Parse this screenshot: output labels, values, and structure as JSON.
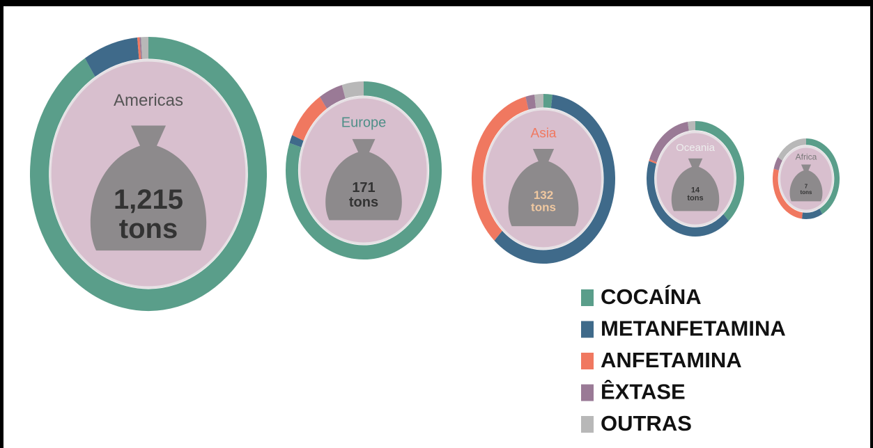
{
  "chart_data": {
    "type": "donut",
    "categories": [
      "COCAÍNA",
      "METANFETAMINA",
      "ANFETAMINA",
      "ÊXTASE",
      "OUTRAS"
    ],
    "colors": [
      "#5a9e8a",
      "#3f6a8a",
      "#f07860",
      "#9a7a96",
      "#b8b8b8"
    ],
    "series": [
      {
        "name": "Americas",
        "center_label": [
          "1,215",
          "tons"
        ],
        "values": [
          91,
          7.5,
          0.3,
          0.2,
          1
        ]
      },
      {
        "name": "Europe",
        "center_label": [
          "171",
          "tons"
        ],
        "values": [
          80,
          1.5,
          9,
          5,
          4.5
        ]
      },
      {
        "name": "Asia",
        "center_label": [
          "132",
          "tons"
        ],
        "values": [
          2,
          60,
          34,
          2,
          2
        ]
      },
      {
        "name": "Oceania",
        "center_label": [
          "14",
          "tons"
        ],
        "values": [
          38,
          42,
          0.5,
          17,
          2.5
        ]
      },
      {
        "name": "Africa",
        "center_label": [
          "7",
          "tons"
        ],
        "values": [
          42,
          10,
          27,
          5,
          16
        ]
      }
    ]
  }
}
